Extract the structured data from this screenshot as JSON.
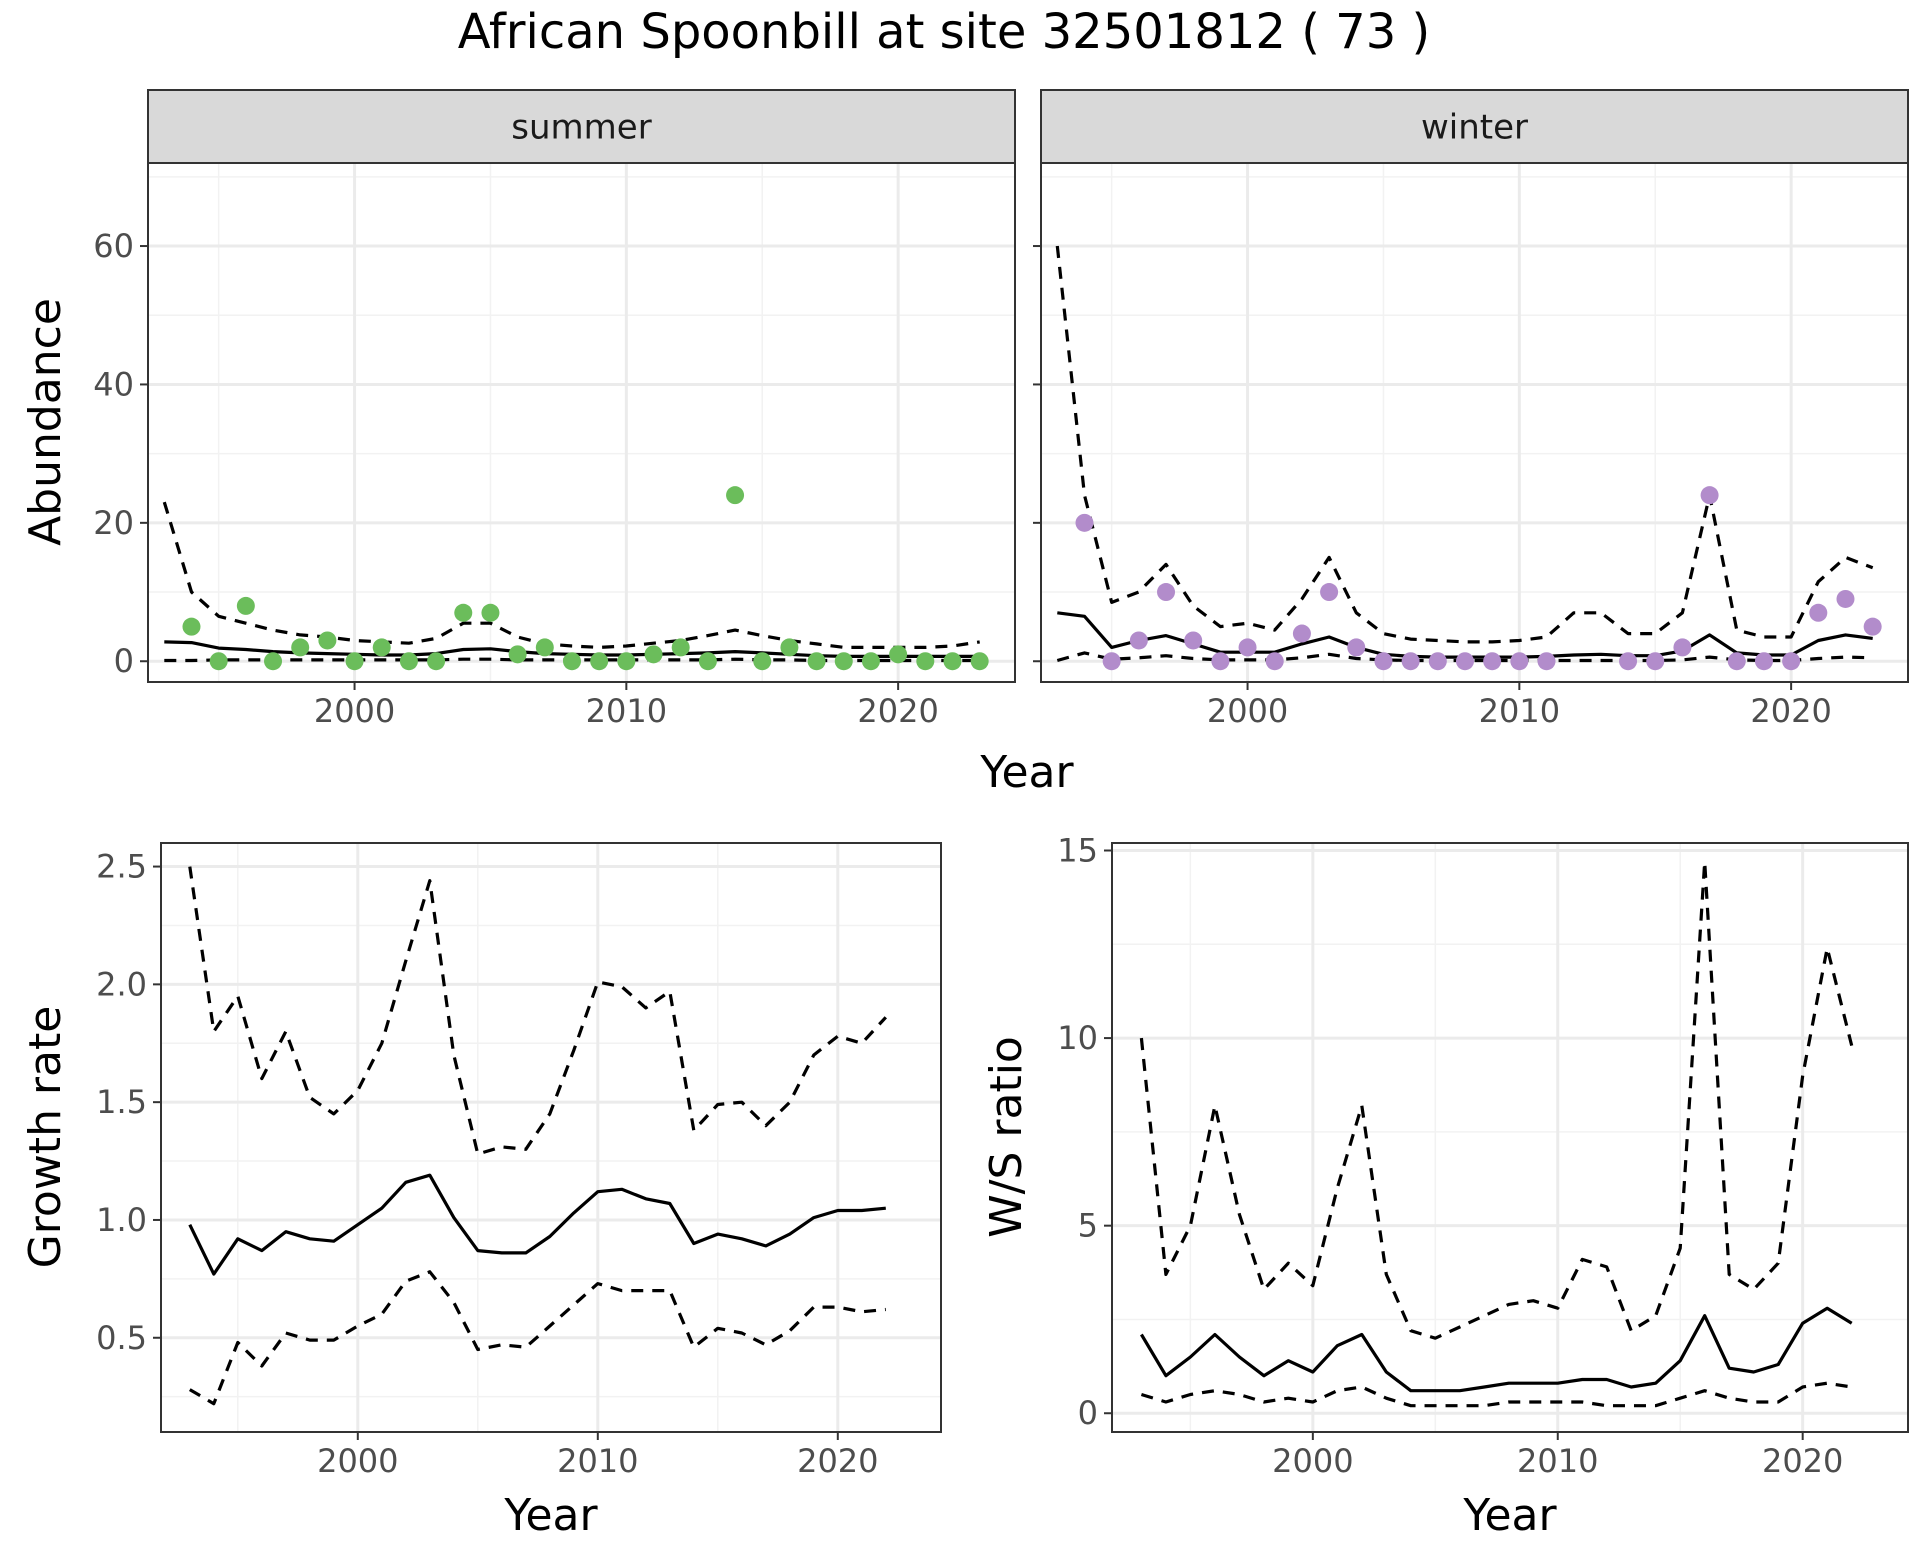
{
  "title": "African Spoonbill at site 32501812 ( 73 )",
  "chart_data": [
    {
      "type": "scatter",
      "panel": "summer",
      "strip": "summer",
      "xlabel": "",
      "ylabel": "Abundance",
      "shared_xlabel": "Year",
      "xlim": [
        1992.4,
        2024.3
      ],
      "ylim": [
        -3,
        72
      ],
      "xticks": [
        2000,
        2010,
        2020
      ],
      "yticks": [
        0,
        20,
        40,
        60
      ],
      "grid": true,
      "point_color": "#6bbd5b",
      "points": {
        "x": [
          1994,
          1995,
          1996,
          1997,
          1998,
          1999,
          2000,
          2001,
          2002,
          2003,
          2004,
          2005,
          2006,
          2007,
          2008,
          2009,
          2010,
          2011,
          2012,
          2013,
          2014,
          2015,
          2016,
          2017,
          2018,
          2019,
          2020,
          2021,
          2022,
          2023
        ],
        "y": [
          5,
          0,
          8,
          0,
          2,
          3,
          0,
          2,
          0,
          0,
          7,
          7,
          1,
          2,
          0,
          0,
          0,
          1,
          2,
          0,
          24,
          0,
          2,
          0,
          0,
          0,
          1,
          0,
          0,
          0
        ]
      },
      "lines": [
        {
          "style": "solid",
          "x": [
            1993,
            1994,
            1995,
            1996,
            1997,
            1998,
            1999,
            2000,
            2001,
            2002,
            2003,
            2004,
            2005,
            2006,
            2007,
            2008,
            2009,
            2010,
            2011,
            2012,
            2013,
            2014,
            2015,
            2016,
            2017,
            2018,
            2019,
            2020,
            2021,
            2022,
            2023
          ],
          "y": [
            2.8,
            2.7,
            1.9,
            1.7,
            1.4,
            1.2,
            1.1,
            1.0,
            0.9,
            0.9,
            1.1,
            1.7,
            1.8,
            1.4,
            1.1,
            1.0,
            0.9,
            0.9,
            1.0,
            1.1,
            1.2,
            1.4,
            1.2,
            1.0,
            0.8,
            0.7,
            0.7,
            0.7,
            0.7,
            0.7,
            0.7
          ]
        },
        {
          "style": "dashed",
          "x": [
            1993,
            1994,
            1995,
            1996,
            1997,
            1998,
            1999,
            2000,
            2001,
            2002,
            2003,
            2004,
            2005,
            2006,
            2007,
            2008,
            2009,
            2010,
            2011,
            2012,
            2013,
            2014,
            2015,
            2016,
            2017,
            2018,
            2019,
            2020,
            2021,
            2022,
            2023
          ],
          "y": [
            23,
            10,
            6.5,
            5.5,
            4.5,
            3.8,
            3.5,
            3.0,
            2.8,
            2.6,
            3.3,
            5.5,
            5.5,
            3.5,
            2.5,
            2.2,
            2.0,
            2.2,
            2.6,
            3.0,
            3.7,
            4.5,
            3.7,
            3.0,
            2.5,
            2.0,
            2.0,
            2.0,
            2.0,
            2.2,
            2.8
          ]
        },
        {
          "style": "dashed",
          "x": [
            1993,
            1994,
            1995,
            1996,
            1997,
            1998,
            1999,
            2000,
            2001,
            2002,
            2003,
            2004,
            2005,
            2006,
            2007,
            2008,
            2009,
            2010,
            2011,
            2012,
            2013,
            2014,
            2015,
            2016,
            2017,
            2018,
            2019,
            2020,
            2021,
            2022,
            2023
          ],
          "y": [
            0.1,
            0.1,
            0.2,
            0.2,
            0.2,
            0.2,
            0.2,
            0.2,
            0.2,
            0.2,
            0.2,
            0.3,
            0.3,
            0.2,
            0.2,
            0.2,
            0.2,
            0.2,
            0.2,
            0.2,
            0.2,
            0.3,
            0.2,
            0.2,
            0.1,
            0.1,
            0.1,
            0.1,
            0.1,
            0.1,
            0.1
          ]
        }
      ]
    },
    {
      "type": "scatter",
      "panel": "winter",
      "strip": "winter",
      "xlabel": "",
      "ylabel": "",
      "xlim": [
        1992.4,
        2024.3
      ],
      "ylim": [
        -3,
        72
      ],
      "xticks": [
        2000,
        2010,
        2020
      ],
      "yticks": [
        0,
        20,
        40,
        60
      ],
      "grid": true,
      "point_color": "#b28ccb",
      "points": {
        "x": [
          1994,
          1995,
          1996,
          1997,
          1998,
          1999,
          2000,
          2001,
          2002,
          2003,
          2004,
          2005,
          2006,
          2007,
          2008,
          2009,
          2010,
          2011,
          2014,
          2015,
          2016,
          2017,
          2018,
          2019,
          2020,
          2021,
          2022,
          2023
        ],
        "y": [
          20,
          0,
          3,
          10,
          3,
          0,
          2,
          0,
          4,
          10,
          2,
          0,
          0,
          0,
          0,
          0,
          0,
          0,
          0,
          0,
          2,
          24,
          0,
          0,
          0,
          7,
          9,
          5
        ]
      },
      "lines": [
        {
          "style": "solid",
          "x": [
            1993,
            1994,
            1995,
            1996,
            1997,
            1998,
            1999,
            2000,
            2001,
            2002,
            2003,
            2004,
            2005,
            2006,
            2007,
            2008,
            2009,
            2010,
            2011,
            2012,
            2013,
            2014,
            2015,
            2016,
            2017,
            2018,
            2019,
            2020,
            2021,
            2022,
            2023
          ],
          "y": [
            7,
            6.5,
            2.0,
            3.0,
            3.7,
            2.5,
            1.3,
            1.3,
            1.3,
            2.5,
            3.5,
            2.0,
            1.0,
            0.7,
            0.6,
            0.6,
            0.6,
            0.6,
            0.7,
            0.9,
            1.0,
            0.8,
            0.8,
            1.5,
            3.8,
            1.2,
            0.9,
            0.9,
            3.0,
            3.8,
            3.3
          ]
        },
        {
          "style": "dashed",
          "x": [
            1993,
            1994,
            1995,
            1996,
            1997,
            1998,
            1999,
            2000,
            2001,
            2002,
            2003,
            2004,
            2005,
            2006,
            2007,
            2008,
            2009,
            2010,
            2011,
            2012,
            2013,
            2014,
            2015,
            2016,
            2017,
            2018,
            2019,
            2020,
            2021,
            2022,
            2023
          ],
          "y": [
            60,
            24,
            8.5,
            10,
            14,
            8,
            5,
            5.5,
            4.5,
            9,
            15,
            7,
            4,
            3.2,
            3.0,
            2.8,
            2.8,
            3.0,
            3.5,
            7,
            7,
            4,
            4,
            7,
            24,
            4.5,
            3.5,
            3.5,
            11.5,
            15,
            13.5
          ]
        },
        {
          "style": "dashed",
          "x": [
            1993,
            1994,
            1995,
            1996,
            1997,
            1998,
            1999,
            2000,
            2001,
            2002,
            2003,
            2004,
            2005,
            2006,
            2007,
            2008,
            2009,
            2010,
            2011,
            2012,
            2013,
            2014,
            2015,
            2016,
            2017,
            2018,
            2019,
            2020,
            2021,
            2022,
            2023
          ],
          "y": [
            0.1,
            1.2,
            0.3,
            0.5,
            0.8,
            0.4,
            0.2,
            0.2,
            0.2,
            0.5,
            1.0,
            0.4,
            0.2,
            0.1,
            0.1,
            0.1,
            0.1,
            0.1,
            0.1,
            0.1,
            0.1,
            0.1,
            0.1,
            0.2,
            0.6,
            0.2,
            0.1,
            0.1,
            0.4,
            0.6,
            0.5
          ]
        }
      ]
    },
    {
      "type": "line",
      "panel": "growth",
      "xlabel": "Year",
      "ylabel": "Growth rate",
      "xlim": [
        1991.8,
        2024.3
      ],
      "ylim": [
        0.1,
        2.6
      ],
      "xticks": [
        2000,
        2010,
        2020
      ],
      "yticks": [
        0.5,
        1.0,
        1.5,
        2.0,
        2.5
      ],
      "ytick_labels": [
        "0.5",
        "1.0",
        "1.5",
        "2.0",
        "2.5"
      ],
      "grid": true,
      "lines": [
        {
          "style": "solid",
          "x": [
            1993,
            1994,
            1995,
            1996,
            1997,
            1998,
            1999,
            2000,
            2001,
            2002,
            2003,
            2004,
            2005,
            2006,
            2007,
            2008,
            2009,
            2010,
            2011,
            2012,
            2013,
            2014,
            2015,
            2016,
            2017,
            2018,
            2019,
            2020,
            2021,
            2022
          ],
          "y": [
            0.98,
            0.77,
            0.92,
            0.87,
            0.95,
            0.92,
            0.91,
            0.98,
            1.05,
            1.16,
            1.19,
            1.01,
            0.87,
            0.86,
            0.86,
            0.93,
            1.03,
            1.12,
            1.13,
            1.09,
            1.07,
            0.9,
            0.94,
            0.92,
            0.89,
            0.94,
            1.01,
            1.04,
            1.04,
            1.05
          ]
        },
        {
          "style": "dashed",
          "x": [
            1993,
            1994,
            1995,
            1996,
            1997,
            1998,
            1999,
            2000,
            2001,
            2002,
            2003,
            2004,
            2005,
            2006,
            2007,
            2008,
            2009,
            2010,
            2011,
            2012,
            2013,
            2014,
            2015,
            2016,
            2017,
            2018,
            2019,
            2020,
            2021,
            2022
          ],
          "y": [
            2.5,
            1.8,
            1.95,
            1.6,
            1.8,
            1.52,
            1.45,
            1.55,
            1.75,
            2.1,
            2.44,
            1.7,
            1.28,
            1.31,
            1.3,
            1.45,
            1.72,
            2.01,
            1.99,
            1.9,
            1.97,
            1.38,
            1.49,
            1.5,
            1.4,
            1.5,
            1.7,
            1.78,
            1.75,
            1.86
          ]
        },
        {
          "style": "dashed",
          "x": [
            1993,
            1994,
            1995,
            1996,
            1997,
            1998,
            1999,
            2000,
            2001,
            2002,
            2003,
            2004,
            2005,
            2006,
            2007,
            2008,
            2009,
            2010,
            2011,
            2012,
            2013,
            2014,
            2015,
            2016,
            2017,
            2018,
            2019,
            2020,
            2021,
            2022
          ],
          "y": [
            0.28,
            0.22,
            0.48,
            0.38,
            0.52,
            0.49,
            0.49,
            0.55,
            0.6,
            0.74,
            0.78,
            0.65,
            0.45,
            0.47,
            0.46,
            0.55,
            0.64,
            0.73,
            0.7,
            0.7,
            0.7,
            0.46,
            0.54,
            0.52,
            0.47,
            0.53,
            0.63,
            0.63,
            0.61,
            0.62
          ]
        }
      ]
    },
    {
      "type": "line",
      "panel": "ratio",
      "xlabel": "Year",
      "ylabel": "W/S ratio",
      "xlim": [
        1991.8,
        2024.3
      ],
      "ylim": [
        -0.5,
        15.2
      ],
      "xticks": [
        2000,
        2010,
        2020
      ],
      "yticks": [
        0,
        5,
        10,
        15
      ],
      "grid": true,
      "lines": [
        {
          "style": "solid",
          "x": [
            1993,
            1994,
            1995,
            1996,
            1997,
            1998,
            1999,
            2000,
            2001,
            2002,
            2003,
            2004,
            2005,
            2006,
            2007,
            2008,
            2009,
            2010,
            2011,
            2012,
            2013,
            2014,
            2015,
            2016,
            2017,
            2018,
            2019,
            2020,
            2021,
            2022
          ],
          "y": [
            2.1,
            1.0,
            1.5,
            2.1,
            1.5,
            1.0,
            1.4,
            1.1,
            1.8,
            2.1,
            1.1,
            0.6,
            0.6,
            0.6,
            0.7,
            0.8,
            0.8,
            0.8,
            0.9,
            0.9,
            0.7,
            0.8,
            1.4,
            2.6,
            1.2,
            1.1,
            1.3,
            2.4,
            2.8,
            2.4
          ]
        },
        {
          "style": "dashed",
          "x": [
            1993,
            1994,
            1995,
            1996,
            1997,
            1998,
            1999,
            2000,
            2001,
            2002,
            2003,
            2004,
            2005,
            2006,
            2007,
            2008,
            2009,
            2010,
            2011,
            2012,
            2013,
            2014,
            2015,
            2016,
            2017,
            2018,
            2019,
            2020,
            2021,
            2022
          ],
          "y": [
            10.0,
            3.7,
            5.0,
            8.2,
            5.3,
            3.3,
            4.0,
            3.4,
            6.0,
            8.2,
            3.7,
            2.2,
            2.0,
            2.3,
            2.6,
            2.9,
            3.0,
            2.8,
            4.1,
            3.9,
            2.2,
            2.6,
            4.4,
            14.7,
            3.7,
            3.3,
            4.0,
            9.0,
            12.4,
            9.8
          ]
        },
        {
          "style": "dashed",
          "x": [
            1993,
            1994,
            1995,
            1996,
            1997,
            1998,
            1999,
            2000,
            2001,
            2002,
            2003,
            2004,
            2005,
            2006,
            2007,
            2008,
            2009,
            2010,
            2011,
            2012,
            2013,
            2014,
            2015,
            2016,
            2017,
            2018,
            2019,
            2020,
            2021,
            2022
          ],
          "y": [
            0.5,
            0.3,
            0.5,
            0.6,
            0.5,
            0.3,
            0.4,
            0.3,
            0.6,
            0.7,
            0.4,
            0.2,
            0.2,
            0.2,
            0.2,
            0.3,
            0.3,
            0.3,
            0.3,
            0.2,
            0.2,
            0.2,
            0.4,
            0.6,
            0.4,
            0.3,
            0.3,
            0.7,
            0.8,
            0.7
          ]
        }
      ]
    }
  ]
}
